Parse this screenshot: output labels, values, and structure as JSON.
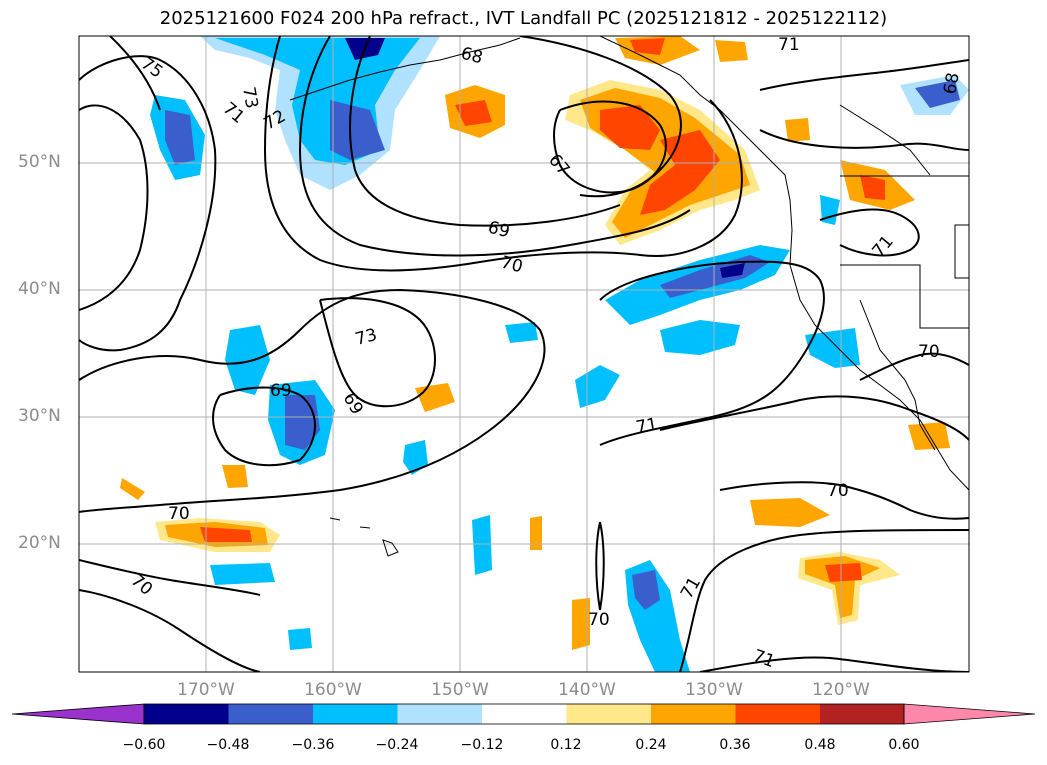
{
  "title": "2025121600 F024 200 hPa refract., IVT Landfall PC (2025121812 - 2025122112)",
  "latitude_labels": [
    "50°N",
    "40°N",
    "30°N",
    "20°N"
  ],
  "longitude_labels": [
    "170°W",
    "160°W",
    "150°W",
    "140°W",
    "130°W",
    "120°W"
  ],
  "contour_labels": [
    "75",
    "73",
    "72",
    "71",
    "68",
    "67",
    "69",
    "70",
    "69",
    "73",
    "69",
    "70",
    "70",
    "71",
    "71",
    "70",
    "70",
    "71",
    "71",
    "71",
    "70",
    "68"
  ],
  "colorbar": {
    "ticks": [
      "−0.60",
      "−0.48",
      "−0.36",
      "−0.24",
      "−0.12",
      "0.12",
      "0.24",
      "0.36",
      "0.48",
      "0.60"
    ],
    "colors": [
      "#9a32cd",
      "#00008b",
      "#3a5fcd",
      "#00bfff",
      "#b0e2ff",
      "#ffffff",
      "#ffe78a",
      "#ffa500",
      "#ff4500",
      "#b22222",
      "#ff88aa"
    ]
  },
  "colors": {
    "neg_deep": "#00008b",
    "neg_mid": "#3a5fcd",
    "neg_bright": "#00bfff",
    "neg_light": "#b0e2ff",
    "pos_light": "#ffe78a",
    "pos_mid": "#ffa500",
    "pos_bright": "#ff4500",
    "gridline": "#b0b0b0"
  }
}
